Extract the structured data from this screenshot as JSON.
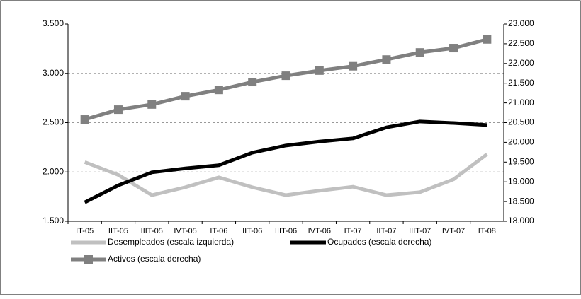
{
  "chart_data": {
    "type": "line",
    "categories": [
      "IT-05",
      "IIT-05",
      "IIIT-05",
      "IVT-05",
      "IT-06",
      "IIT-06",
      "IIIT-06",
      "IVT-06",
      "IT-07",
      "IIT-07",
      "IIIT-07",
      "IVT-07",
      "IT-08"
    ],
    "ylim": [
      1500,
      3500
    ],
    "yticks": [
      {
        "value": 1500,
        "label": "1.500"
      },
      {
        "value": 2000,
        "label": "2.000"
      },
      {
        "value": 2500,
        "label": "2.500"
      },
      {
        "value": 3000,
        "label": "3.000"
      },
      {
        "value": 3500,
        "label": "3.500"
      }
    ],
    "y2lim": [
      18000,
      23000
    ],
    "y2ticks": [
      {
        "value": 18000,
        "label": "18.000"
      },
      {
        "value": 18500,
        "label": "18.500"
      },
      {
        "value": 19000,
        "label": "19.000"
      },
      {
        "value": 19500,
        "label": "19.500"
      },
      {
        "value": 20000,
        "label": "20.000"
      },
      {
        "value": 20500,
        "label": "20.500"
      },
      {
        "value": 21000,
        "label": "21.000"
      },
      {
        "value": 21500,
        "label": "21.500"
      },
      {
        "value": 22000,
        "label": "22.000"
      },
      {
        "value": 22500,
        "label": "22.500"
      },
      {
        "value": 23000,
        "label": "23.000"
      }
    ],
    "grid": true,
    "series": [
      {
        "name": "Desempleados (escala izquierda)",
        "color": "#c0c0c0",
        "values": [
          2100,
          1970,
          1765,
          1845,
          1945,
          1845,
          1765,
          1810,
          1850,
          1765,
          1795,
          1925,
          2180
        ]
      },
      {
        "name": "Ocupados (escala derecha)",
        "color": "#000000",
        "axis": "y2",
        "values": [
          18480,
          18910,
          19240,
          19340,
          19420,
          19740,
          19920,
          20020,
          20100,
          20380,
          20530,
          20490,
          20440
        ]
      },
      {
        "name": "Activos (escala derecha)",
        "color": "#808080",
        "axis": "y2",
        "marker": "square",
        "values": [
          20580,
          20830,
          20960,
          21170,
          21330,
          21530,
          21690,
          21820,
          21930,
          22100,
          22280,
          22390,
          22610
        ]
      }
    ]
  }
}
